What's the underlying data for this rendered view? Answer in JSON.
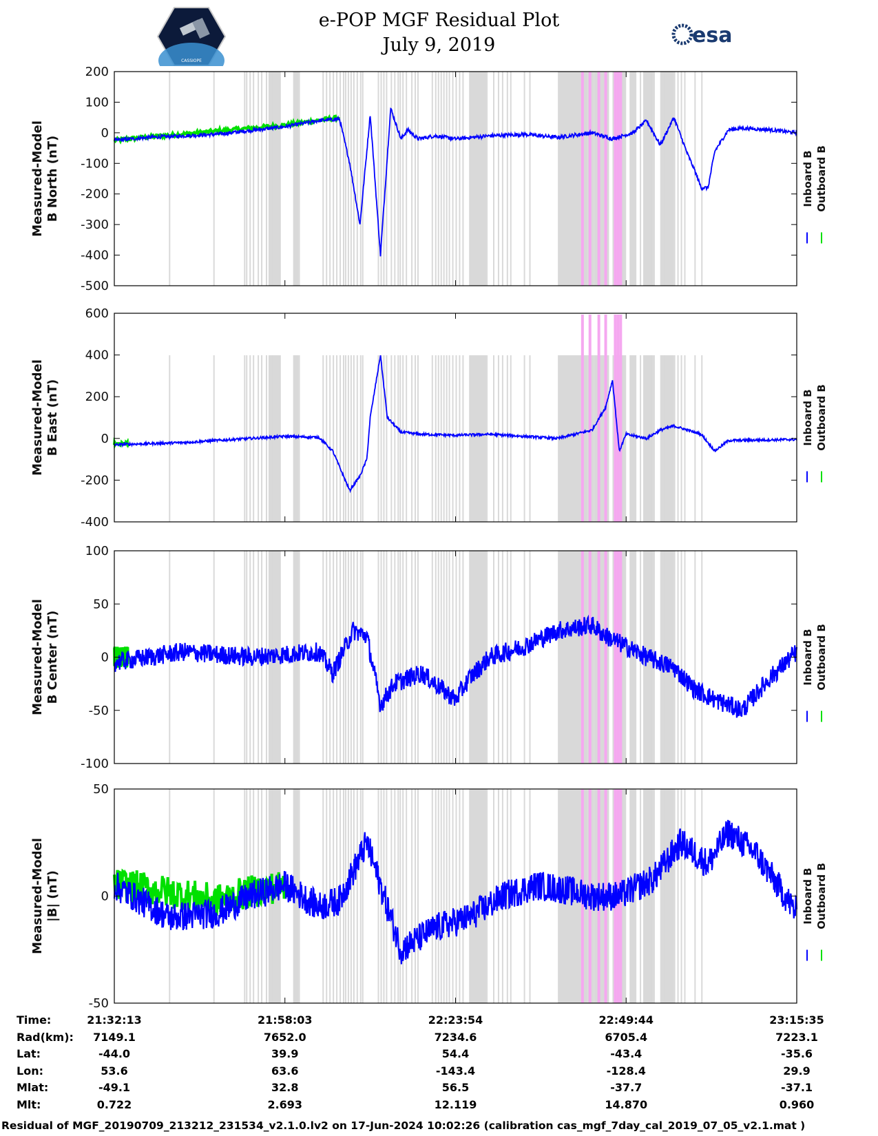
{
  "header": {
    "title_line1": "e-POP MGF Residual Plot",
    "title_line2": "July 9, 2019",
    "left_logo_text": "CASSIOPE",
    "right_logo_text": "esa"
  },
  "colors": {
    "inboard": "#0000ff",
    "outboard": "#00e000",
    "gray_band": "#d9d9d9",
    "pink_band": "#f5a8f0"
  },
  "legend": {
    "inboard": "Inboard B",
    "outboard": "Outboard B"
  },
  "chart_data": [
    {
      "type": "line",
      "title": "",
      "ylabel": [
        "Measured-Model",
        "B North (nT)"
      ],
      "ylim": [
        -500,
        200
      ],
      "yticks": [
        "200",
        "100",
        "0",
        "-100",
        "-200",
        "-300",
        "-400",
        "-500"
      ],
      "series": [
        {
          "name": "Inboard B",
          "x": [
            0,
            0.05,
            0.15,
            0.25,
            0.3,
            0.33,
            0.345,
            0.36,
            0.375,
            0.39,
            0.405,
            0.42,
            0.43,
            0.445,
            0.47,
            0.5,
            0.55,
            0.6,
            0.65,
            0.7,
            0.73,
            0.76,
            0.78,
            0.8,
            0.82,
            0.84,
            0.85,
            0.86,
            0.87,
            0.88,
            0.9,
            0.92,
            0.96,
            1.0
          ],
          "y": [
            -25,
            -15,
            -5,
            20,
            40,
            45,
            -100,
            -300,
            60,
            -400,
            80,
            -20,
            10,
            -20,
            -10,
            -20,
            -10,
            -5,
            -15,
            0,
            -20,
            0,
            40,
            -40,
            50,
            -70,
            -120,
            -180,
            -180,
            -60,
            10,
            15,
            10,
            0
          ]
        },
        {
          "name": "Outboard B",
          "x": [
            0,
            0.02,
            0.25,
            0.33
          ],
          "y": [
            -25,
            -20,
            25,
            50
          ]
        }
      ]
    },
    {
      "type": "line",
      "title": "",
      "ylabel": [
        "Measured-Model",
        "B East (nT)"
      ],
      "ylim": [
        -400,
        600
      ],
      "yticks": [
        "600",
        "400",
        "200",
        "0",
        "-200",
        "-400"
      ],
      "series": [
        {
          "name": "Inboard B",
          "x": [
            0,
            0.1,
            0.2,
            0.25,
            0.3,
            0.32,
            0.345,
            0.36,
            0.37,
            0.375,
            0.39,
            0.4,
            0.42,
            0.45,
            0.5,
            0.55,
            0.6,
            0.65,
            0.7,
            0.72,
            0.73,
            0.74,
            0.75,
            0.78,
            0.8,
            0.82,
            0.84,
            0.86,
            0.88,
            0.9,
            1.0
          ],
          "y": [
            -30,
            -20,
            0,
            10,
            5,
            -60,
            -250,
            -180,
            -100,
            100,
            400,
            100,
            30,
            20,
            15,
            20,
            10,
            0,
            40,
            150,
            280,
            -60,
            20,
            0,
            40,
            60,
            40,
            20,
            -60,
            -10,
            -5
          ]
        },
        {
          "name": "Outboard B",
          "x": [
            0,
            0.02
          ],
          "y": [
            -25,
            -25
          ]
        }
      ]
    },
    {
      "type": "line",
      "title": "",
      "ylabel": [
        "Measured-Model",
        "B Center (nT)"
      ],
      "ylim": [
        -100,
        100
      ],
      "yticks": [
        "100",
        "50",
        "0",
        "-50",
        "-100"
      ],
      "series": [
        {
          "name": "Inboard B",
          "x": [
            0,
            0.1,
            0.2,
            0.3,
            0.32,
            0.35,
            0.37,
            0.39,
            0.41,
            0.45,
            0.5,
            0.52,
            0.55,
            0.6,
            0.65,
            0.7,
            0.72,
            0.75,
            0.78,
            0.82,
            0.85,
            0.88,
            0.92,
            0.96,
            1.0
          ],
          "y": [
            -5,
            5,
            0,
            5,
            -15,
            25,
            20,
            -45,
            -25,
            -15,
            -40,
            -20,
            0,
            10,
            25,
            30,
            20,
            10,
            0,
            -10,
            -30,
            -40,
            -50,
            -20,
            5
          ]
        },
        {
          "name": "Outboard B",
          "x": [
            0,
            0.02
          ],
          "y": [
            0,
            0
          ]
        }
      ]
    },
    {
      "type": "line",
      "title": "",
      "ylabel": [
        "Measured-Model",
        "|B| (nT)"
      ],
      "ylim": [
        -50,
        50
      ],
      "yticks": [
        "50",
        "0",
        "-50"
      ],
      "series": [
        {
          "name": "Inboard B",
          "x": [
            0,
            0.08,
            0.15,
            0.2,
            0.25,
            0.3,
            0.33,
            0.37,
            0.42,
            0.47,
            0.52,
            0.57,
            0.62,
            0.66,
            0.7,
            0.74,
            0.79,
            0.83,
            0.87,
            0.9,
            0.94,
            1.0
          ],
          "y": [
            5,
            -10,
            -8,
            0,
            5,
            -5,
            -2,
            25,
            -25,
            -15,
            -10,
            0,
            5,
            3,
            0,
            0,
            8,
            25,
            15,
            30,
            20,
            -8
          ]
        },
        {
          "name": "Outboard B",
          "x": [
            0,
            0.02,
            0.15,
            0.2,
            0.25
          ],
          "y": [
            5,
            5,
            -2,
            2,
            5
          ]
        }
      ]
    }
  ],
  "table": {
    "rows": [
      {
        "label": "Time:",
        "values": [
          "21:32:13",
          "21:58:03",
          "22:23:54",
          "22:49:44",
          "23:15:35"
        ]
      },
      {
        "label": "Rad(km):",
        "values": [
          "7149.1",
          "7652.0",
          "7234.6",
          "6705.4",
          "7223.1"
        ]
      },
      {
        "label": "Lat:",
        "values": [
          "-44.0",
          "39.9",
          "54.4",
          "-43.4",
          "-35.6"
        ]
      },
      {
        "label": "Lon:",
        "values": [
          "53.6",
          "63.6",
          "-143.4",
          "-128.4",
          "29.9"
        ]
      },
      {
        "label": "Mlat:",
        "values": [
          "-49.1",
          "32.8",
          "56.5",
          "-37.7",
          "-37.1"
        ]
      },
      {
        "label": "Mlt:",
        "values": [
          "0.722",
          "2.693",
          "12.119",
          "14.870",
          "0.960"
        ]
      }
    ]
  },
  "footer": "Residual of MGF_20190709_213212_231534_v2.1.0.lv2 on 17-Jun-2024 10:02:26 (calibration cas_mgf_7day_cal_2019_07_05_v2.1.mat )"
}
